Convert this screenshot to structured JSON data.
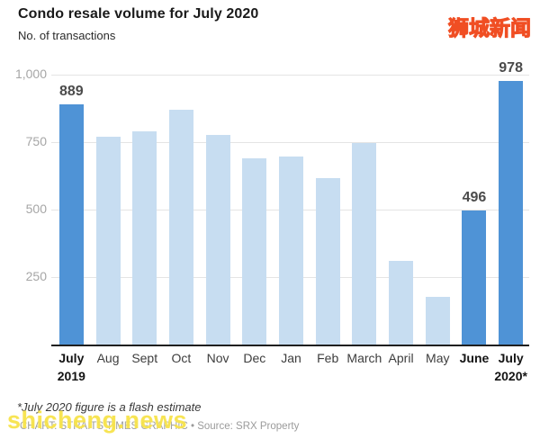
{
  "header": {
    "title": "Condo resale volume for July 2020",
    "subtitle": "No. of transactions"
  },
  "watermarks": {
    "top_right": "狮城新闻",
    "bottom_left": "shicheng.news"
  },
  "footer": {
    "footnote": "*July 2020 figure is a flash estimate",
    "credit": "CHART: STRAITS TIMES GRAPHIC • Source: SRX Property"
  },
  "colors": {
    "bar_default": "#c7ddf1",
    "bar_highlight": "#4f93d6",
    "gridline": "#e4e4e4",
    "axis_line": "#1f1f1f",
    "watermark_yellow": "#ffe94d",
    "watermark_outline": "#f04e23"
  },
  "chart_data": {
    "type": "bar",
    "title": "Condo resale volume for July 2020",
    "ylabel": "No. of transactions",
    "ylim": [
      0,
      1000
    ],
    "grid": true,
    "yticks": [
      {
        "value": 250,
        "label": "250"
      },
      {
        "value": 500,
        "label": "500"
      },
      {
        "value": 750,
        "label": "750"
      },
      {
        "value": 1000,
        "label": "1,000"
      }
    ],
    "categories": [
      "July 2019",
      "Aug",
      "Sept",
      "Oct",
      "Nov",
      "Dec",
      "Jan",
      "Feb",
      "March",
      "April",
      "May",
      "June",
      "July 2020*"
    ],
    "values": [
      889,
      770,
      790,
      870,
      775,
      690,
      695,
      615,
      745,
      310,
      175,
      496,
      978
    ],
    "bars": [
      {
        "line1": "July",
        "line2": "2019",
        "value": 889,
        "highlight": true,
        "value_label": "889"
      },
      {
        "line1": "Aug",
        "value": 770,
        "highlight": false
      },
      {
        "line1": "Sept",
        "value": 790,
        "highlight": false
      },
      {
        "line1": "Oct",
        "value": 870,
        "highlight": false
      },
      {
        "line1": "Nov",
        "value": 775,
        "highlight": false
      },
      {
        "line1": "Dec",
        "value": 690,
        "highlight": false
      },
      {
        "line1": "Jan",
        "value": 695,
        "highlight": false
      },
      {
        "line1": "Feb",
        "value": 615,
        "highlight": false
      },
      {
        "line1": "March",
        "value": 745,
        "highlight": false
      },
      {
        "line1": "April",
        "value": 310,
        "highlight": false
      },
      {
        "line1": "May",
        "value": 175,
        "highlight": false
      },
      {
        "line1": "June",
        "value": 496,
        "highlight": true,
        "value_label": "496"
      },
      {
        "line1": "July",
        "line2": "2020*",
        "value": 978,
        "highlight": true,
        "value_label": "978"
      }
    ],
    "annotations": [
      "889",
      "496",
      "978"
    ],
    "footnote": "*July 2020 figure is a flash estimate",
    "source": "CHART: STRAITS TIMES GRAPHIC • Source: SRX Property",
    "legend": false
  }
}
